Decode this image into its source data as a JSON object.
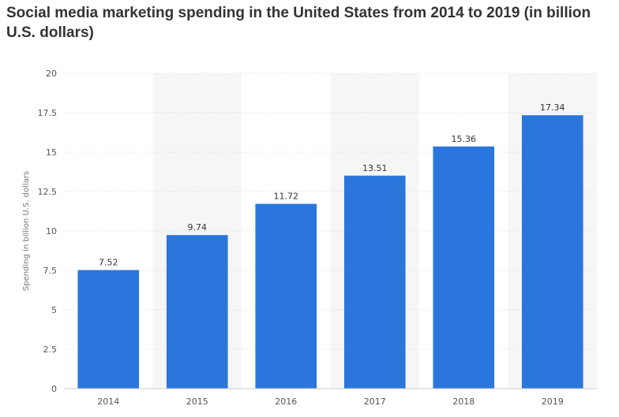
{
  "chart_data": {
    "type": "bar",
    "title": "Social media marketing spending in the United States from 2014 to 2019 (in billion U.S. dollars)",
    "xlabel": "",
    "ylabel": "Spending in billion U.S. dollars",
    "categories": [
      "2014",
      "2015",
      "2016",
      "2017",
      "2018",
      "2019"
    ],
    "values": [
      7.52,
      9.74,
      11.72,
      13.51,
      15.36,
      17.34
    ],
    "value_labels": [
      "7.52",
      "9.74",
      "11.72",
      "13.51",
      "15.36",
      "17.34"
    ],
    "ylim": [
      0,
      20
    ],
    "yticks": [
      "0",
      "2.5",
      "5",
      "7.5",
      "10",
      "12.5",
      "15",
      "17.5",
      "20"
    ],
    "grid": true,
    "legend": "none",
    "bar_color": "#2a76dd",
    "band_color": "#f6f6f6"
  }
}
